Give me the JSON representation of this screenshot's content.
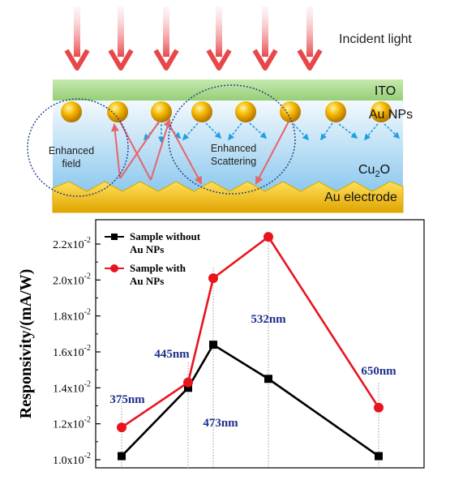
{
  "diagram": {
    "labels": {
      "incident_light": "Incident light",
      "ito": "ITO",
      "au_nps": "Au NPs",
      "cu2o_main": "Cu",
      "cu2o_sub": "2",
      "cu2o_end": "O",
      "au_electrode": "Au electrode",
      "enhanced_field_1": "Enhanced",
      "enhanced_field_2": "field",
      "enhanced_scattering_1": "Enhanced",
      "enhanced_scattering_2": "Scattering"
    },
    "colors": {
      "light_arrow": "#e8474a",
      "ito": "#a8d88a",
      "cu2o_top": "#f4f9fd",
      "cu2o_bottom": "#8dc9ee",
      "au_electrode": "#f2c400",
      "nanoparticle": "#f0b000",
      "scatter_arrow": "#1e9fe0",
      "reflection_arrow": "#e8646a"
    }
  },
  "chart_data": {
    "type": "line",
    "ylabel": "Responsivity/(mA/W)",
    "ylim": [
      0.01,
      0.0228
    ],
    "y_ticks": [
      {
        "base": "1.0x10",
        "exp": "-2",
        "value": 0.01
      },
      {
        "base": "1.2x10",
        "exp": "-2",
        "value": 0.012
      },
      {
        "base": "1.4x10",
        "exp": "-2",
        "value": 0.014
      },
      {
        "base": "1.6x10",
        "exp": "-2",
        "value": 0.016
      },
      {
        "base": "1.8x10",
        "exp": "-2",
        "value": 0.018
      },
      {
        "base": "2.0x10",
        "exp": "-2",
        "value": 0.02
      },
      {
        "base": "2.2x10",
        "exp": "-2",
        "value": 0.022
      }
    ],
    "x": [
      375,
      445,
      473,
      532,
      650
    ],
    "categories": [
      "375nm",
      "445nm",
      "473nm",
      "532nm",
      "650nm"
    ],
    "series": [
      {
        "name_line1": "Sample without",
        "name_line2": "Au NPs",
        "color": "#000000",
        "marker": "square",
        "values": [
          0.0102,
          0.014,
          0.0164,
          0.0145,
          0.0102
        ]
      },
      {
        "name_line1": "Sample with",
        "name_line2": "Au NPs",
        "color": "#e8141e",
        "marker": "circle",
        "values": [
          0.0118,
          0.0143,
          0.0201,
          0.0224,
          0.0129
        ]
      }
    ],
    "legend": "top-left",
    "grid": false
  }
}
